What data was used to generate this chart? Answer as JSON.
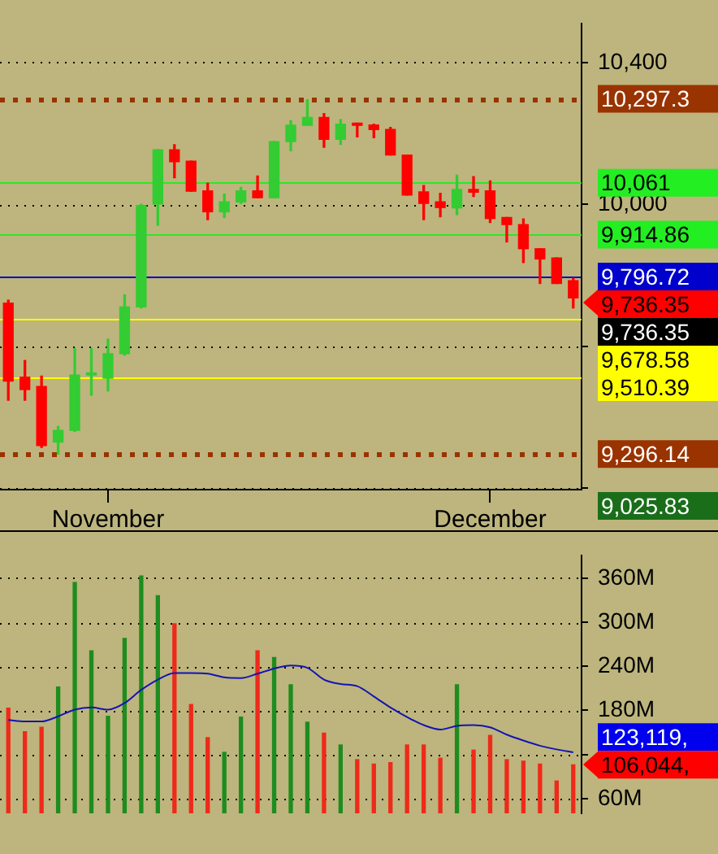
{
  "chart_data": [
    {
      "type": "candlestick",
      "categories": [
        null,
        null,
        null,
        null,
        null,
        null,
        "November",
        null,
        null,
        null,
        null,
        null,
        null,
        null,
        null,
        null,
        null,
        null,
        null,
        null,
        null,
        null,
        null,
        null,
        null,
        null,
        null,
        null,
        null,
        "December",
        null,
        null,
        null,
        null,
        null
      ],
      "ohlc": [
        [
          9722,
          9730,
          9448,
          9502
        ],
        [
          9513,
          9560,
          9448,
          9478
        ],
        [
          9487,
          9516,
          9315,
          9320
        ],
        [
          9330,
          9374,
          9296,
          9363
        ],
        [
          9363,
          9594,
          9360,
          9519
        ],
        [
          9519,
          9594,
          9462,
          9525
        ],
        [
          9510,
          9620,
          9474,
          9579
        ],
        [
          9579,
          9745,
          9575,
          9711
        ],
        [
          9711,
          10000,
          9708,
          9997
        ],
        [
          10001,
          10154,
          9941,
          10154
        ],
        [
          10154,
          10168,
          10075,
          10120
        ],
        [
          10122,
          10122,
          10037,
          10037
        ],
        [
          10038,
          10060,
          9957,
          9979
        ],
        [
          9979,
          10029,
          9963,
          10007
        ],
        [
          10007,
          10048,
          10003,
          10038
        ],
        [
          10038,
          10080,
          10019,
          10019
        ],
        [
          10019,
          10177,
          10019,
          10177
        ],
        [
          10177,
          10236,
          10151,
          10223
        ],
        [
          10223,
          10295,
          10223,
          10245
        ],
        [
          10245,
          10256,
          10161,
          10183
        ],
        [
          10183,
          10239,
          10169,
          10226
        ],
        [
          10229,
          10229,
          10190,
          10223
        ],
        [
          10224,
          10226,
          10188,
          10211
        ],
        [
          10211,
          10217,
          10139,
          10139
        ],
        [
          10139,
          10139,
          10026,
          10026
        ],
        [
          10035,
          10053,
          9957,
          10003
        ],
        [
          10007,
          10031,
          9965,
          9991
        ],
        [
          9990,
          10082,
          9971,
          10042
        ],
        [
          10042,
          10078,
          10022,
          10034
        ],
        [
          10038,
          10066,
          9949,
          9960
        ],
        [
          9963,
          9963,
          9894,
          9943
        ],
        [
          9943,
          9959,
          9836,
          9875
        ],
        [
          9875,
          9875,
          9777,
          9846
        ],
        [
          9849,
          9849,
          9777,
          9777
        ],
        [
          9785,
          9792,
          9708,
          9736.35
        ]
      ],
      "colors": [
        "#ff0000",
        "#ff0000",
        "#ff0000",
        "#33cc33",
        "#33cc33",
        "#33cc33",
        "#33cc33",
        "#33cc33",
        "#33cc33",
        "#33cc33",
        "#ff0000",
        "#ff0000",
        "#ff0000",
        "#33cc33",
        "#33cc33",
        "#ff0000",
        "#33cc33",
        "#33cc33",
        "#33cc33",
        "#ff0000",
        "#33cc33",
        "#ff0000",
        "#ff0000",
        "#ff0000",
        "#ff0000",
        "#ff0000",
        "#ff0000",
        "#33cc33",
        "#ff0000",
        "#ff0000",
        "#ff0000",
        "#ff0000",
        "#ff0000",
        "#ff0000",
        "#ff0000"
      ],
      "ylim": [
        9196,
        10510
      ],
      "yticks": [
        {
          "value": 9200,
          "label": null
        },
        {
          "value": 9600,
          "label": null
        },
        {
          "value": 10000,
          "label": "10,000"
        },
        {
          "value": 10400,
          "label": "10,400"
        }
      ],
      "grid": "y",
      "ref_lines": [
        {
          "axis": "y",
          "value": 10297.3,
          "label": "10,297.3",
          "color": "#993300",
          "line_style": "dotted"
        },
        {
          "axis": "y",
          "value": 10061,
          "label": "10,061",
          "color": "#22ee22",
          "line_style": "solid"
        },
        {
          "axis": "y",
          "value": 9914.86,
          "label": "9,914.86",
          "color": "#22ee22",
          "line_style": "solid"
        },
        {
          "axis": "y",
          "value": 9796.72,
          "label": "9,796.72",
          "color": "#0000cc",
          "line_style": "solid"
        },
        {
          "axis": "y",
          "value": 9678.58,
          "label": "9,678.58",
          "color": "#ffff00",
          "line_style": "solid"
        },
        {
          "axis": "y",
          "value": 9510.39,
          "label": "9,510.39",
          "color": "#ffff00",
          "line_style": "solid"
        },
        {
          "axis": "y",
          "value": 9296.14,
          "label": "9,296.14",
          "color": "#993300",
          "line_style": "dotted"
        }
      ],
      "annotations": [
        "9,736.35",
        "9,736.35",
        "9,025.83"
      ]
    },
    {
      "type": "bar",
      "categories": [
        null,
        null,
        null,
        null,
        null,
        null,
        null,
        null,
        null,
        null,
        null,
        null,
        null,
        null,
        null,
        null,
        null,
        null,
        null,
        null,
        null,
        null,
        null,
        null,
        null,
        null,
        null,
        null,
        null,
        null,
        null,
        null,
        null,
        null,
        null
      ],
      "tick_labels": "y",
      "series": [
        {
          "type": "bar",
          "colors": [
            "#ee2a1a",
            "#ee2a1a",
            "#ee2a1a",
            "#1e8c1e",
            "#1e8c1e",
            "#1e8c1e",
            "#1e8c1e",
            "#1e8c1e",
            "#1e8c1e",
            "#1e8c1e",
            "#ee2a1a",
            "#ee2a1a",
            "#ee2a1a",
            "#1e8c1e",
            "#1e8c1e",
            "#ee2a1a",
            "#1e8c1e",
            "#1e8c1e",
            "#1e8c1e",
            "#ee2a1a",
            "#1e8c1e",
            "#ee2a1a",
            "#ee2a1a",
            "#ee2a1a",
            "#ee2a1a",
            "#ee2a1a",
            "#ee2a1a",
            "#1e8c1e",
            "#ee2a1a",
            "#ee2a1a",
            "#ee2a1a",
            "#ee2a1a",
            "#ee2a1a",
            "#ee2a1a",
            "#ee2a1a"
          ],
          "values": [
            183,
            151,
            157,
            212,
            354,
            261,
            172,
            278,
            363,
            336,
            298,
            188,
            143,
            123,
            171,
            261,
            252,
            215,
            164,
            149,
            133,
            113,
            107,
            109,
            133,
            133,
            115,
            215,
            126,
            146,
            113,
            111,
            107,
            84,
            106
          ]
        },
        {
          "type": "line",
          "color": "#1414b4",
          "values": [
            167,
            165,
            165,
            172,
            181,
            184,
            181,
            190,
            208,
            222,
            231,
            231,
            230,
            225,
            224,
            230,
            237,
            241,
            238,
            222,
            216,
            213,
            199,
            184,
            171,
            160,
            154,
            159,
            160,
            157,
            147,
            139,
            132,
            127,
            123
          ]
        }
      ],
      "marker": "none",
      "ylim": [
        40,
        391
      ],
      "yticks": [
        {
          "value": 60,
          "label": "60M"
        },
        {
          "value": 120,
          "label": null
        },
        {
          "value": 180,
          "label": "180M"
        },
        {
          "value": 240,
          "label": "240M"
        },
        {
          "value": 300,
          "label": "300M"
        },
        {
          "value": 360,
          "label": "360M"
        }
      ],
      "grid": "y",
      "annotations": [
        "123,119,",
        "106,044,"
      ]
    }
  ]
}
